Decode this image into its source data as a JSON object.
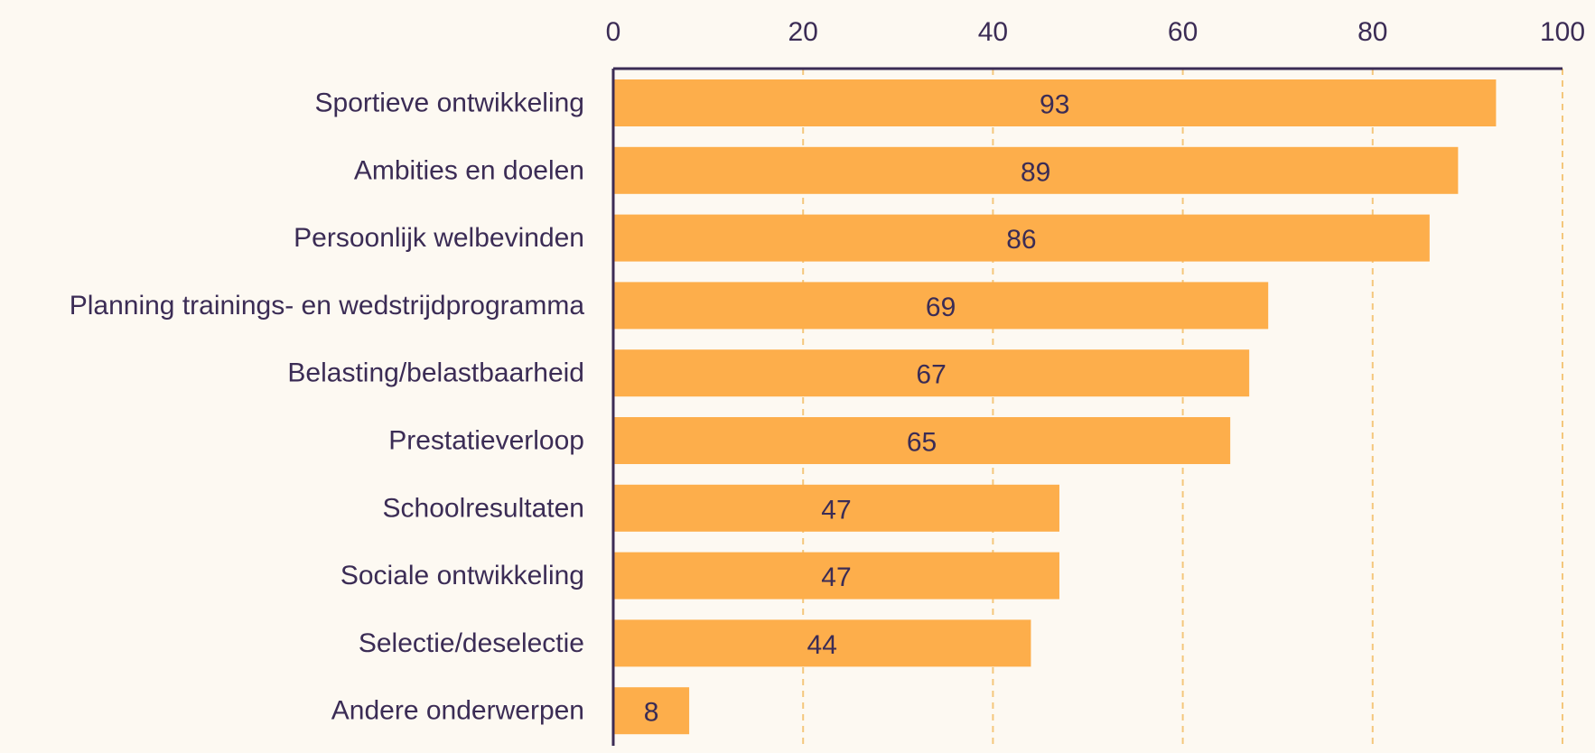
{
  "chart_data": {
    "type": "bar",
    "orientation": "horizontal",
    "title": "",
    "xlabel": "",
    "ylabel": "",
    "xlim": [
      0,
      100
    ],
    "ticks": [
      "0",
      "20",
      "40",
      "60",
      "80",
      "100"
    ],
    "tick_values": [
      0,
      20,
      40,
      60,
      80,
      100
    ],
    "axis_position": "top",
    "grid": "vertical dashed",
    "legend": "none",
    "categories": [
      "Sportieve ontwikkeling",
      "Ambities en doelen",
      "Persoonlijk welbevinden",
      "Planning trainings- en wedstrijdprogramma",
      "Belasting/belastbaarheid",
      "Prestatieverloop",
      "Schoolresultaten",
      "Sociale ontwikkeling",
      "Selectie/deselectie",
      "Andere onderwerpen"
    ],
    "values": [
      93,
      89,
      86,
      69,
      67,
      65,
      47,
      47,
      44,
      8
    ],
    "value_labels": [
      "93",
      "89",
      "86",
      "69",
      "67",
      "65",
      "47",
      "47",
      "44",
      "8"
    ]
  },
  "colors": {
    "background": "#fdf9f2",
    "bar": "#fdae4b",
    "grid": "#f4c77c",
    "axis": "#3b2c55",
    "text": "#3b2c55"
  }
}
